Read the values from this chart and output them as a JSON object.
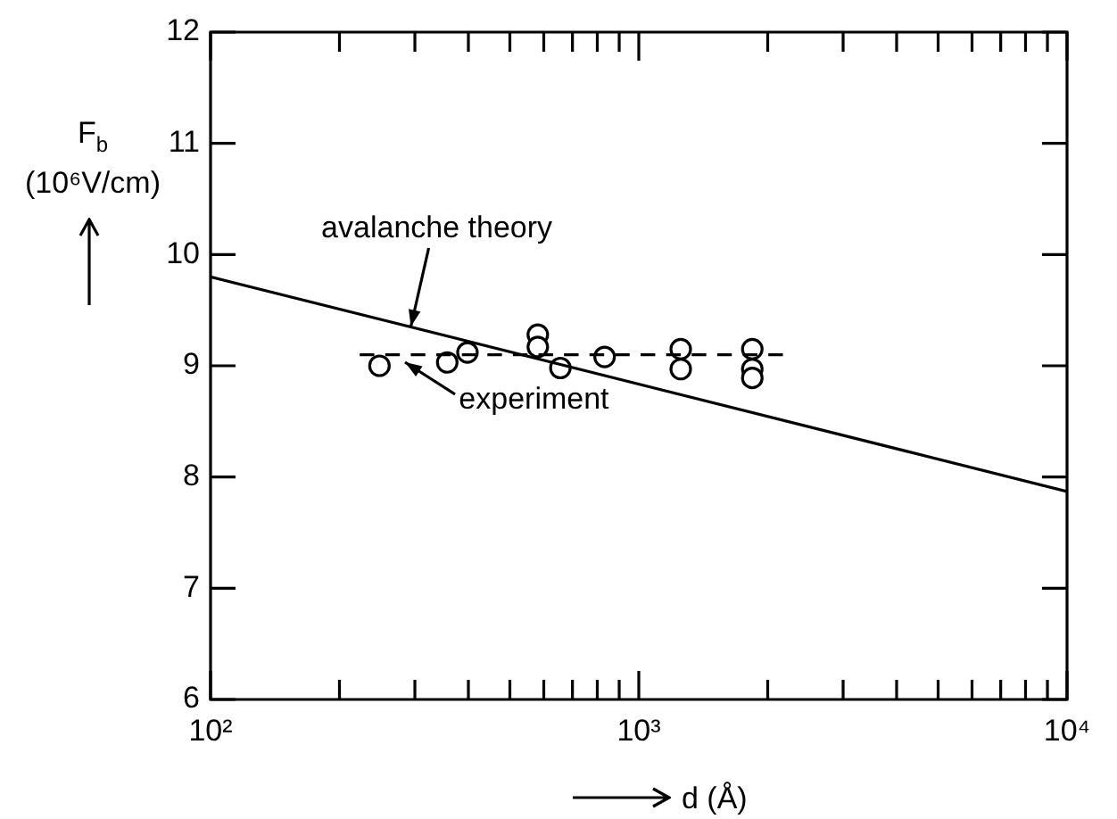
{
  "chart_data": {
    "type": "line",
    "xlabel": "d (Å)",
    "ylabel": "F$_{b}$ (10⁶V/cm)",
    "log": "x",
    "grid": false,
    "legend": false,
    "xlim": [
      100,
      10000
    ],
    "ylim": [
      6,
      12
    ],
    "xticks": [
      {
        "value": 100,
        "label": "10²"
      },
      {
        "value": 200,
        "label": null
      },
      {
        "value": 300,
        "label": null
      },
      {
        "value": 400,
        "label": null
      },
      {
        "value": 500,
        "label": null
      },
      {
        "value": 600,
        "label": null
      },
      {
        "value": 700,
        "label": null
      },
      {
        "value": 800,
        "label": null
      },
      {
        "value": 900,
        "label": null
      },
      {
        "value": 1000,
        "label": "10³"
      },
      {
        "value": 2000,
        "label": null
      },
      {
        "value": 3000,
        "label": null
      },
      {
        "value": 4000,
        "label": null
      },
      {
        "value": 5000,
        "label": null
      },
      {
        "value": 6000,
        "label": null
      },
      {
        "value": 7000,
        "label": null
      },
      {
        "value": 8000,
        "label": null
      },
      {
        "value": 9000,
        "label": null
      },
      {
        "value": 10000,
        "label": "10⁴"
      }
    ],
    "yticks": [
      6,
      7,
      8,
      9,
      10,
      11,
      12
    ],
    "series": [
      {
        "color": "#000000",
        "line_style": "solid",
        "marker": "none",
        "x": [
          100,
          10000
        ],
        "values": [
          9.8,
          7.87
        ]
      },
      {
        "color": "#000000",
        "line_style": "dashed",
        "marker": "none",
        "x": [
          223,
          2170
        ],
        "values": [
          9.1,
          9.1
        ]
      },
      {
        "type": "scatter",
        "color": "#000000",
        "marker": "circle",
        "x": [
          248,
          357,
          398,
          581,
          581,
          656,
          832,
          1253,
          1253,
          1841,
          1841,
          1841
        ],
        "values": [
          9.0,
          9.03,
          9.12,
          9.28,
          9.17,
          8.98,
          9.08,
          9.15,
          8.97,
          9.15,
          8.97,
          8.89
        ]
      }
    ],
    "annotations": [
      {
        "text": "avalanche theory",
        "x": 293,
        "y": 9.35
      },
      {
        "text": "experiment",
        "x": 285,
        "y": 9.03
      }
    ]
  }
}
